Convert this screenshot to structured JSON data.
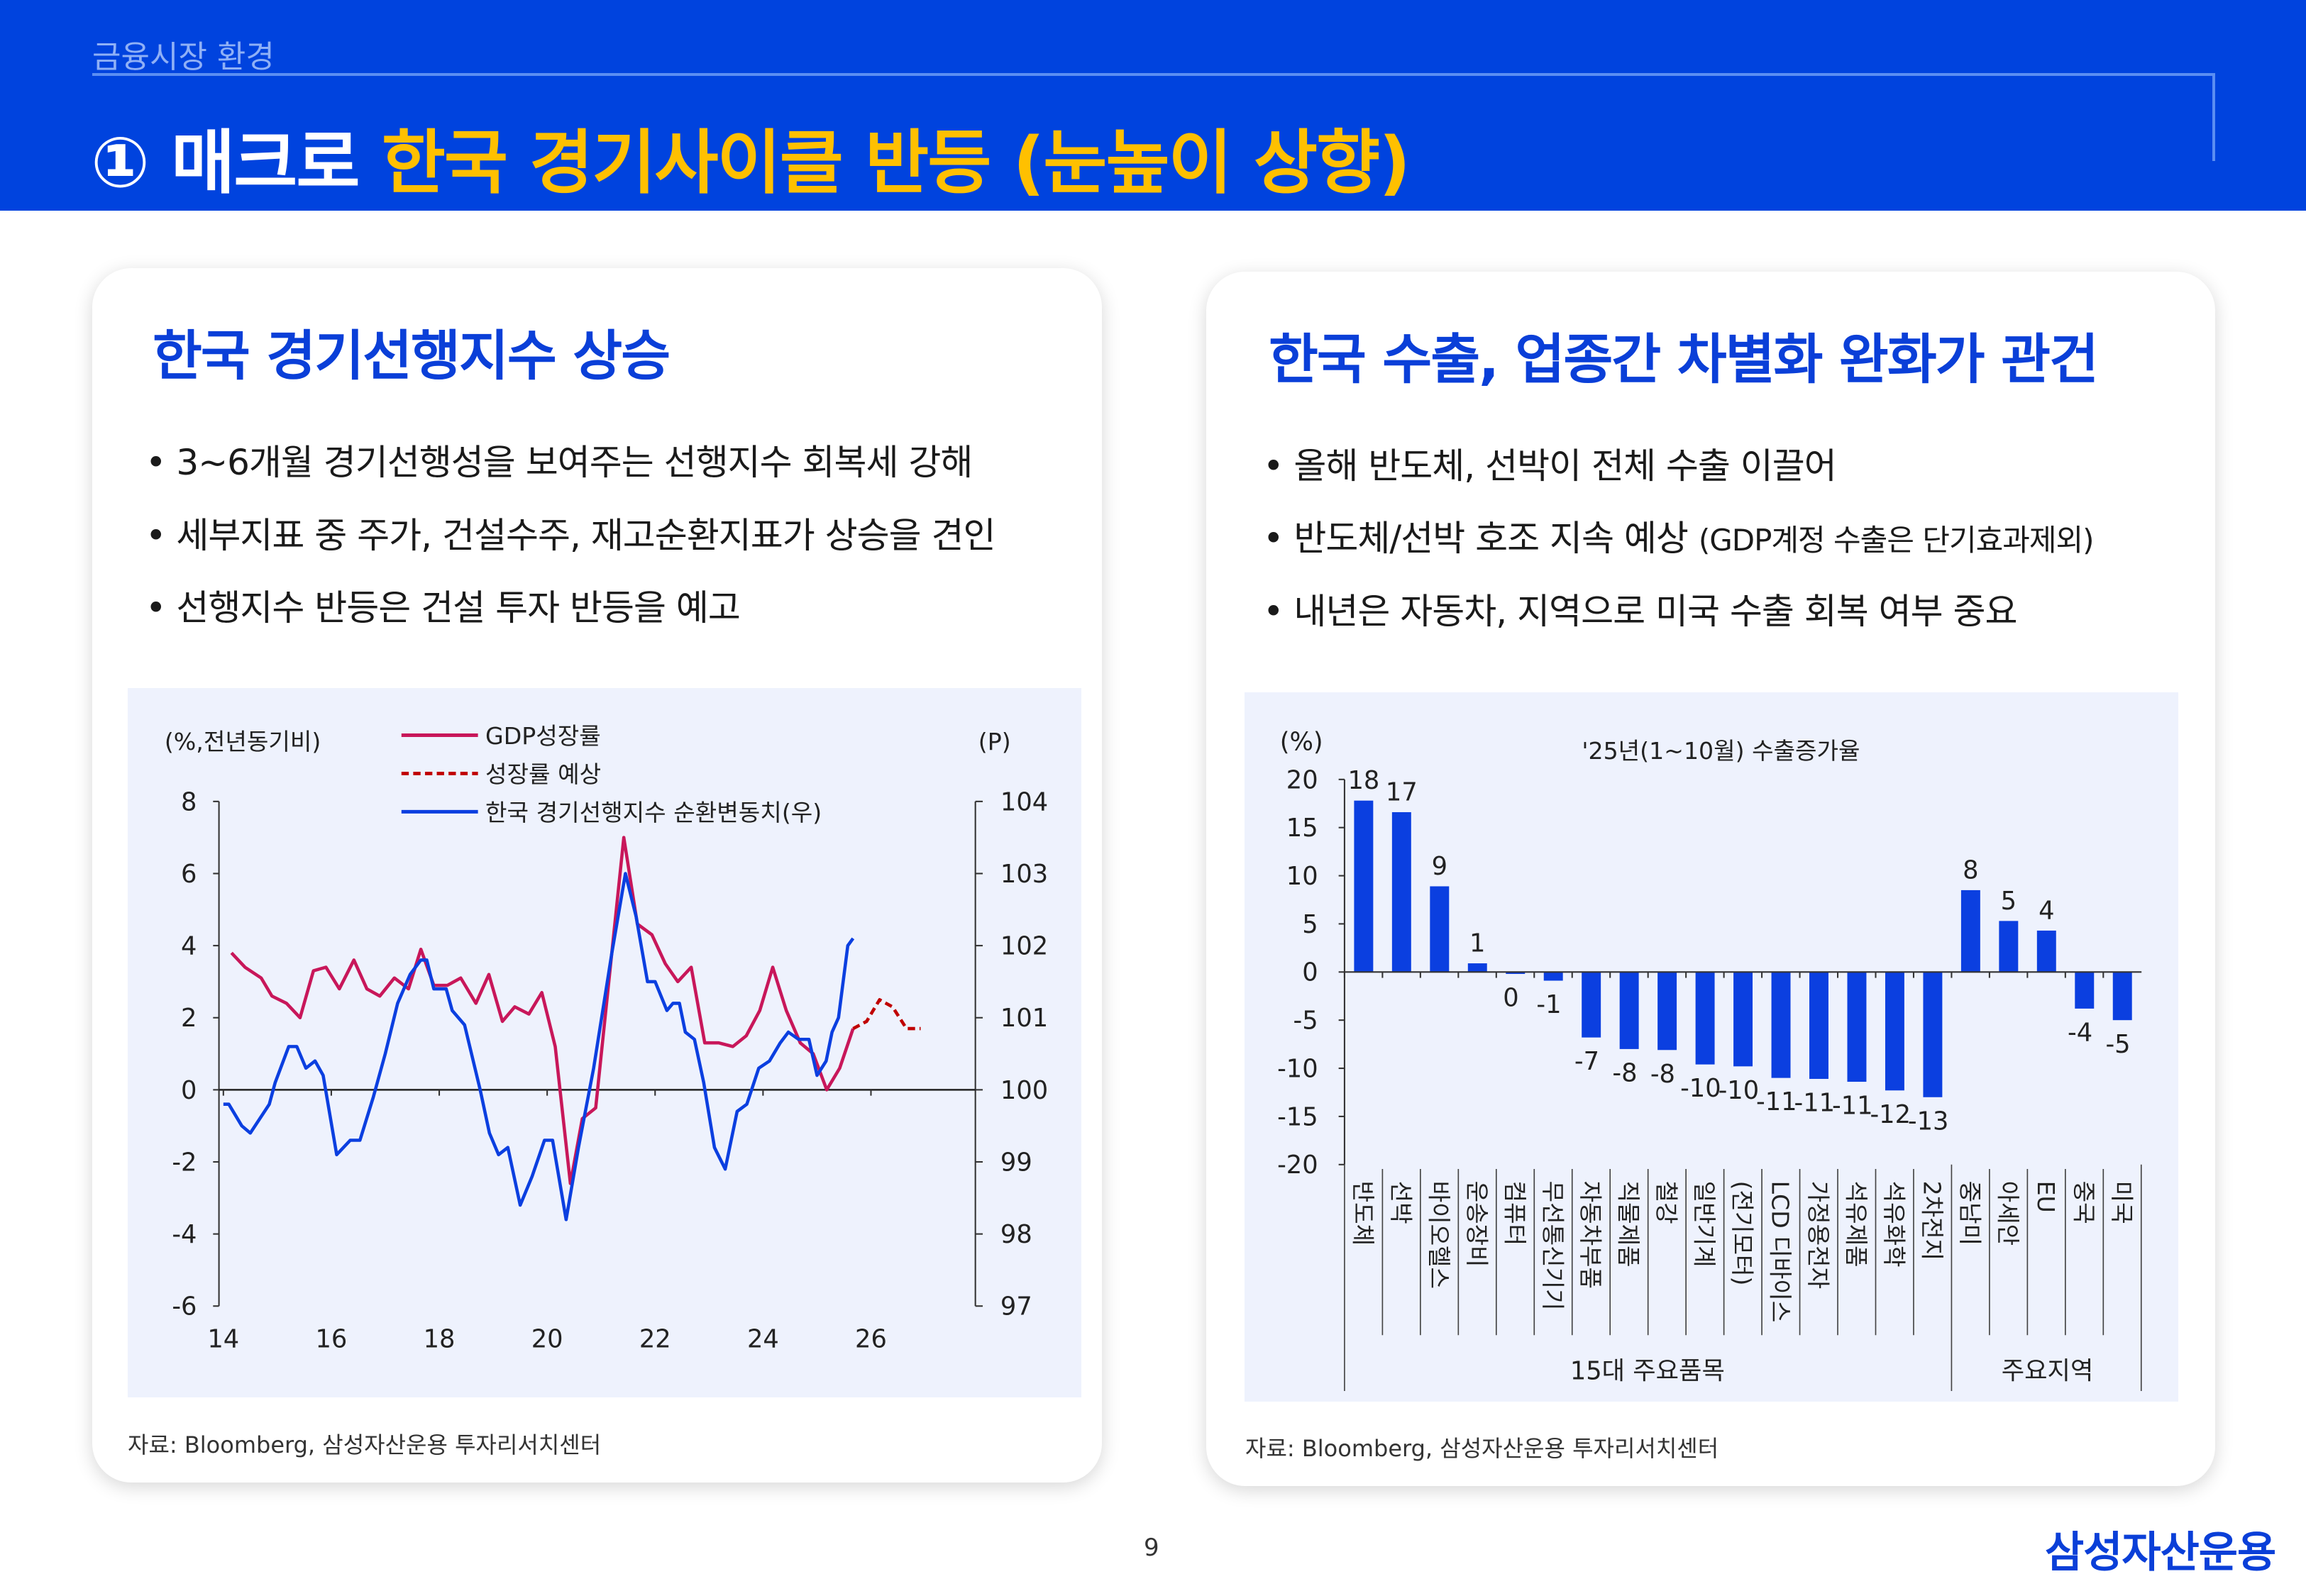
{
  "header": {
    "section": "금융시장 환경",
    "number": "①",
    "category": "매크로",
    "title": "한국 경기사이클 반등 (눈높이 상향)"
  },
  "left": {
    "heading": "한국 경기선행지수 상승",
    "bullets": [
      "• 3~6개월 경기선행성을 보여주는 선행지수 회복세 강해",
      "• 세부지표 중 주가, 건설수주, 재고순환지표가 상승을 견인",
      "• 선행지수 반등은 건설 투자 반등을 예고"
    ],
    "source": "자료: Bloomberg, 삼성자산운용 투자리서치센터"
  },
  "right": {
    "heading": "한국 수출, 업종간 차별화 완화가 관건",
    "bullets": [
      {
        "text": "• 올해 반도체, 선박이 전체 수출 이끌어",
        "note": ""
      },
      {
        "text": "• 반도체/선박 호조 지속 예상 ",
        "note": "(GDP계정 수출은 단기효과제외)"
      },
      {
        "text": "• 내년은 자동차, 지역으로 미국 수출 회복 여부 중요",
        "note": ""
      }
    ],
    "source": "자료: Bloomberg, 삼성자산운용 투자리서치센터"
  },
  "page_number": "9",
  "logo": "삼성자산운용",
  "colors": {
    "header_bg": "#0043DE",
    "title_accent": "#FFC000",
    "brand_blue": "#0A3FD8",
    "panel_bg": "#EEF2FD"
  },
  "chart_data": [
    {
      "type": "line",
      "ylabel_left": "(%,전년동기비)",
      "ylabel_right": "(P)",
      "x_ticks": [
        "14",
        "16",
        "18",
        "20",
        "22",
        "24",
        "26"
      ],
      "y_ticks_left": [
        "8",
        "6",
        "4",
        "2",
        "0",
        "-2",
        "-4",
        "-6"
      ],
      "y_ticks_right": [
        "104",
        "103",
        "102",
        "101",
        "100",
        "99",
        "98",
        "97"
      ],
      "xlim": [
        14,
        27
      ],
      "ylim_left": [
        -6,
        8
      ],
      "ylim_right": [
        97,
        104
      ],
      "legend": "top-center",
      "series": [
        {
          "name": "GDP성장률",
          "axis": "left",
          "color": "#C8175A",
          "style": "solid",
          "points": [
            [
              14.15,
              3.8
            ],
            [
              14.4,
              3.4
            ],
            [
              14.7,
              3.1
            ],
            [
              14.9,
              2.6
            ],
            [
              15.17,
              2.4
            ],
            [
              15.42,
              2.0
            ],
            [
              15.67,
              3.3
            ],
            [
              15.9,
              3.4
            ],
            [
              16.15,
              2.8
            ],
            [
              16.42,
              3.6
            ],
            [
              16.66,
              2.8
            ],
            [
              16.9,
              2.6
            ],
            [
              17.17,
              3.1
            ],
            [
              17.43,
              2.8
            ],
            [
              17.66,
              3.9
            ],
            [
              17.9,
              2.9
            ],
            [
              18.15,
              2.9
            ],
            [
              18.4,
              3.1
            ],
            [
              18.68,
              2.4
            ],
            [
              18.92,
              3.2
            ],
            [
              19.17,
              1.9
            ],
            [
              19.4,
              2.3
            ],
            [
              19.66,
              2.1
            ],
            [
              19.9,
              2.7
            ],
            [
              20.15,
              1.2
            ],
            [
              20.43,
              -2.6
            ],
            [
              20.65,
              -0.8
            ],
            [
              20.9,
              -0.5
            ],
            [
              21.42,
              7.0
            ],
            [
              21.67,
              4.6
            ],
            [
              21.94,
              4.3
            ],
            [
              22.19,
              3.5
            ],
            [
              22.42,
              3.0
            ],
            [
              22.67,
              3.4
            ],
            [
              22.92,
              1.3
            ],
            [
              23.18,
              1.3
            ],
            [
              23.44,
              1.2
            ],
            [
              23.69,
              1.5
            ],
            [
              23.94,
              2.2
            ],
            [
              24.18,
              3.4
            ],
            [
              24.43,
              2.2
            ],
            [
              24.69,
              1.3
            ],
            [
              24.93,
              1.0
            ],
            [
              25.18,
              0.0
            ],
            [
              25.42,
              0.6
            ],
            [
              25.67,
              1.7
            ]
          ]
        },
        {
          "name": "성장률 예상",
          "axis": "left",
          "color": "#C00000",
          "style": "dashed",
          "points": [
            [
              25.67,
              1.7
            ],
            [
              25.92,
              1.9
            ],
            [
              26.16,
              2.5
            ],
            [
              26.4,
              2.3
            ],
            [
              26.66,
              1.7
            ],
            [
              26.92,
              1.7
            ]
          ]
        },
        {
          "name": "한국 경기선행지수 순환변동치(우)",
          "axis": "right",
          "color": "#0B3FE0",
          "style": "solid",
          "points": [
            [
              14.0,
              99.8
            ],
            [
              14.1,
              99.8
            ],
            [
              14.34,
              99.5
            ],
            [
              14.5,
              99.4
            ],
            [
              14.85,
              99.8
            ],
            [
              14.96,
              100.1
            ],
            [
              15.21,
              100.6
            ],
            [
              15.36,
              100.6
            ],
            [
              15.53,
              100.3
            ],
            [
              15.7,
              100.4
            ],
            [
              15.85,
              100.2
            ],
            [
              16.1,
              99.1
            ],
            [
              16.35,
              99.3
            ],
            [
              16.53,
              99.3
            ],
            [
              16.78,
              99.9
            ],
            [
              17.0,
              100.5
            ],
            [
              17.23,
              101.2
            ],
            [
              17.46,
              101.6
            ],
            [
              17.66,
              101.8
            ],
            [
              17.77,
              101.8
            ],
            [
              17.9,
              101.4
            ],
            [
              18.13,
              101.4
            ],
            [
              18.24,
              101.1
            ],
            [
              18.47,
              100.9
            ],
            [
              18.76,
              100.0
            ],
            [
              18.93,
              99.4
            ],
            [
              19.1,
              99.1
            ],
            [
              19.27,
              99.2
            ],
            [
              19.5,
              98.4
            ],
            [
              19.72,
              98.8
            ],
            [
              19.95,
              99.3
            ],
            [
              20.1,
              99.3
            ],
            [
              20.35,
              98.2
            ],
            [
              20.58,
              99.2
            ],
            [
              20.86,
              100.3
            ],
            [
              21.2,
              101.9
            ],
            [
              21.45,
              103.0
            ],
            [
              21.65,
              102.4
            ],
            [
              21.86,
              101.5
            ],
            [
              22.0,
              101.5
            ],
            [
              22.22,
              101.1
            ],
            [
              22.33,
              101.2
            ],
            [
              22.45,
              101.2
            ],
            [
              22.56,
              100.8
            ],
            [
              22.73,
              100.7
            ],
            [
              22.9,
              100.1
            ],
            [
              23.1,
              99.2
            ],
            [
              23.3,
              98.9
            ],
            [
              23.52,
              99.7
            ],
            [
              23.7,
              99.8
            ],
            [
              23.92,
              100.3
            ],
            [
              24.12,
              100.4
            ],
            [
              24.32,
              100.65
            ],
            [
              24.47,
              100.8
            ],
            [
              24.66,
              100.7
            ],
            [
              24.85,
              100.7
            ],
            [
              25.0,
              100.2
            ],
            [
              25.17,
              100.4
            ],
            [
              25.28,
              100.8
            ],
            [
              25.4,
              101.0
            ],
            [
              25.57,
              102.0
            ],
            [
              25.67,
              102.1
            ]
          ]
        }
      ]
    },
    {
      "type": "bar",
      "title": "'25년(1~10월) 수출증가율",
      "ylabel": "(%)",
      "ylim": [
        -20,
        20
      ],
      "y_ticks": [
        "20",
        "15",
        "10",
        "5",
        "0",
        "-5",
        "-10",
        "-15",
        "-20"
      ],
      "bar_color": "#0B3FE0",
      "categories": [
        "반도체",
        "선박",
        "바이오헬스",
        "운송장비",
        "컴퓨터",
        "무선통신기기",
        "자동차부품",
        "직물제품",
        "철강",
        "일반기계",
        "(전기모터)",
        "LCD 디바이스",
        "가정용전자",
        "석유제품",
        "석유화학",
        "2차전지",
        "중남미",
        "아세안",
        "EU",
        "중국",
        "미국"
      ],
      "values": [
        17.8,
        16.6,
        8.9,
        0.9,
        -0.2,
        -0.9,
        -6.8,
        -8.0,
        -8.1,
        -9.6,
        -9.8,
        -11.0,
        -11.1,
        -11.4,
        -12.3,
        -13.0,
        8.5,
        5.3,
        4.3,
        -3.8,
        -5.0
      ],
      "labels": [
        "18",
        "17",
        "9",
        "1",
        "0",
        "-1",
        "-7",
        "-8",
        "-8",
        "-10",
        "-10",
        "-11",
        "-11",
        "-11",
        "-12",
        "-13",
        "8",
        "5",
        "4",
        "-4",
        "-5"
      ],
      "groups": [
        {
          "name": "15대 주요품목",
          "count": 16
        },
        {
          "name": "주요지역",
          "count": 5
        }
      ]
    }
  ]
}
